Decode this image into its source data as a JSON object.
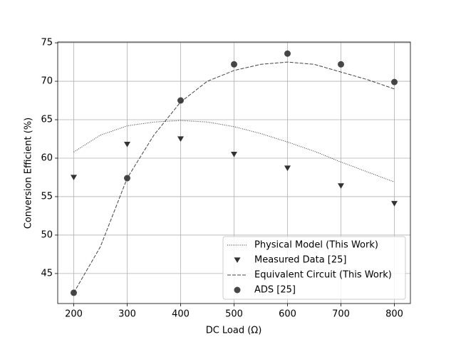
{
  "chart_data": {
    "type": "line",
    "xlabel": "DC Load (Ω)",
    "ylabel": "Conversion Efficient (%)",
    "xlim": [
      170,
      830
    ],
    "ylim": [
      41.1,
      75.1
    ],
    "xticks": [
      200,
      300,
      400,
      500,
      600,
      700,
      800
    ],
    "yticks": [
      45,
      50,
      55,
      60,
      65,
      70,
      75
    ],
    "grid": true,
    "legend": "lower right",
    "series": [
      {
        "name": "Physical Model (This Work)",
        "color": "#333333",
        "style": "dotted",
        "x": [
          200,
          250,
          300,
          350,
          400,
          450,
          500,
          550,
          600,
          650,
          700,
          750,
          800
        ],
        "values": [
          60.8,
          63.0,
          64.2,
          64.7,
          64.9,
          64.7,
          64.1,
          63.2,
          62.1,
          60.9,
          59.5,
          58.2,
          56.9
        ]
      },
      {
        "name": "Measured Data [25]",
        "color": "#333333",
        "style": "triangle",
        "x": [
          200,
          300,
          400,
          500,
          600,
          700,
          800
        ],
        "values": [
          57.5,
          61.8,
          62.5,
          60.5,
          58.7,
          56.4,
          54.1
        ]
      },
      {
        "name": "Equivalent Circuit (This Work)",
        "color": "#444444",
        "style": "dashed",
        "x": [
          200,
          250,
          300,
          350,
          400,
          450,
          500,
          550,
          600,
          650,
          700,
          750,
          800
        ],
        "values": [
          42.5,
          48.5,
          57.4,
          63.0,
          67.3,
          70.0,
          71.4,
          72.2,
          72.5,
          72.2,
          71.2,
          70.2,
          69.0
        ]
      },
      {
        "name": "ADS [25]",
        "color": "#333333",
        "style": "circle",
        "x": [
          200,
          300,
          400,
          500,
          600,
          700,
          800
        ],
        "values": [
          42.5,
          57.4,
          67.5,
          72.2,
          73.6,
          72.2,
          69.9
        ]
      }
    ]
  }
}
